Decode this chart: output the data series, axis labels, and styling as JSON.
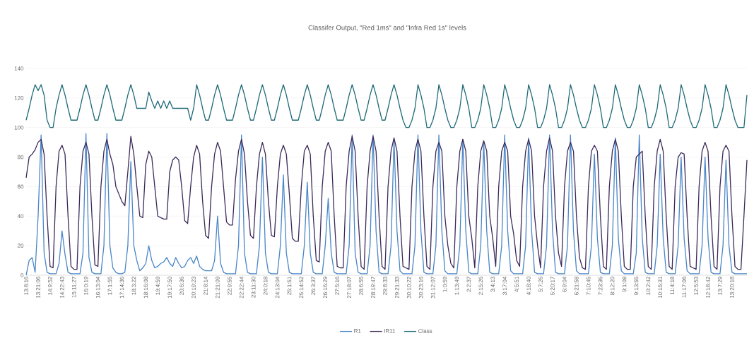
{
  "chart_data": {
    "type": "line",
    "title": "Classifer Output, \"Red 1ms\" and \"Infra Red 1s\" levels",
    "categories": [
      "13:8:16",
      null,
      null,
      null,
      "13:21:06",
      null,
      null,
      null,
      "14:9:52",
      null,
      null,
      null,
      "14:22:43",
      null,
      null,
      null,
      "15:11:27",
      null,
      null,
      null,
      "16:0:19",
      null,
      null,
      null,
      "16:13:04",
      null,
      null,
      null,
      "17:1:55",
      null,
      null,
      null,
      "17:14:36",
      null,
      null,
      null,
      "18:3:22",
      null,
      null,
      null,
      "18:16:08",
      null,
      null,
      null,
      "19:4:59",
      null,
      null,
      null,
      "19:17:50",
      null,
      null,
      null,
      "20:6:36",
      null,
      null,
      null,
      "20:19:23",
      null,
      null,
      null,
      "21:8:14",
      null,
      null,
      null,
      "21:21:09",
      null,
      null,
      null,
      "22:9:55",
      null,
      null,
      null,
      "22:22:44",
      null,
      null,
      null,
      "23:11:30",
      null,
      null,
      null,
      "24:0:18",
      null,
      null,
      null,
      "24:13:04",
      null,
      null,
      null,
      "25:1:51",
      null,
      null,
      null,
      "25:14:52",
      null,
      null,
      null,
      "26:3:37",
      null,
      null,
      null,
      "26:16:29",
      null,
      null,
      null,
      "27:5:16",
      null,
      null,
      null,
      "27:18:07",
      null,
      null,
      null,
      "28:6:55",
      null,
      null,
      null,
      "28:19:47",
      null,
      null,
      null,
      "29:8:33",
      null,
      null,
      null,
      "29:21:33",
      null,
      null,
      null,
      "30:10:22",
      null,
      null,
      null,
      "30:23:16",
      null,
      null,
      null,
      "31:12:07",
      null,
      null,
      null,
      "1:0:59",
      null,
      null,
      null,
      "1:13:49",
      null,
      null,
      null,
      "2:2:37",
      null,
      null,
      null,
      "2:15:26",
      null,
      null,
      null,
      "3:4:13",
      null,
      null,
      null,
      "3:17:04",
      null,
      null,
      null,
      "4:5:51",
      null,
      null,
      null,
      "4:18:40",
      null,
      null,
      null,
      "5:7:26",
      null,
      null,
      null,
      "5:20:17",
      null,
      null,
      null,
      "6:9:04",
      null,
      null,
      null,
      "6:21:58",
      null,
      null,
      null,
      "7:10:45",
      null,
      null,
      null,
      "7:23:36",
      null,
      null,
      null,
      "8:12:20",
      null,
      null,
      null,
      "9:1:08",
      null,
      null,
      null,
      "9:13:55",
      null,
      null,
      null,
      "10:2:42",
      null,
      null,
      null,
      "10:15:31",
      null,
      null,
      null,
      "11:4:18",
      null,
      null,
      null,
      "11:17:06",
      null,
      null,
      null,
      "12:5:53",
      null,
      null,
      null,
      "12:18:42",
      null,
      null,
      null,
      "13:7:29",
      null,
      null,
      null,
      "13:20:18",
      null,
      null,
      null,
      null,
      null
    ],
    "series": [
      {
        "name": "R1",
        "color": "#4a86c8",
        "values": [
          0,
          10,
          12,
          2,
          40,
          95,
          15,
          2,
          1,
          1,
          1,
          8,
          30,
          14,
          2,
          1,
          1,
          1,
          1,
          15,
          96,
          12,
          2,
          1,
          1,
          1,
          20,
          96,
          20,
          5,
          2,
          1,
          1,
          2,
          20,
          77,
          20,
          10,
          3,
          5,
          8,
          20,
          10,
          5,
          6,
          8,
          9,
          12,
          8,
          6,
          12,
          8,
          5,
          6,
          10,
          12,
          8,
          13,
          6,
          4,
          3,
          3,
          3,
          10,
          40,
          8,
          2,
          1,
          1,
          1,
          1,
          20,
          95,
          15,
          2,
          1,
          1,
          1,
          20,
          80,
          15,
          2,
          1,
          1,
          1,
          20,
          68,
          15,
          2,
          1,
          1,
          1,
          1,
          20,
          63,
          15,
          2,
          1,
          1,
          1,
          20,
          52,
          15,
          2,
          1,
          1,
          1,
          1,
          20,
          95,
          15,
          2,
          1,
          1,
          1,
          20,
          95,
          30,
          2,
          1,
          1,
          1,
          20,
          92,
          30,
          3,
          1,
          1,
          1,
          1,
          20,
          95,
          30,
          2,
          1,
          1,
          1,
          20,
          95,
          30,
          3,
          1,
          1,
          1,
          1,
          20,
          92,
          30,
          2,
          1,
          1,
          1,
          20,
          90,
          30,
          2,
          1,
          1,
          1,
          20,
          95,
          30,
          3,
          1,
          1,
          1,
          1,
          20,
          93,
          30,
          2,
          1,
          1,
          1,
          20,
          95,
          30,
          2,
          1,
          1,
          1,
          20,
          95,
          30,
          3,
          1,
          1,
          1,
          1,
          20,
          82,
          25,
          2,
          1,
          1,
          1,
          20,
          93,
          25,
          3,
          1,
          1,
          1,
          1,
          15,
          95,
          25,
          2,
          1,
          1,
          1,
          20,
          82,
          25,
          2,
          1,
          1,
          1,
          20,
          80,
          25,
          3,
          1,
          1,
          1,
          1,
          20,
          80,
          25,
          2,
          1,
          1,
          1,
          20,
          78,
          20,
          2,
          1,
          1,
          1,
          1,
          1
        ]
      },
      {
        "name": "IR11",
        "color": "#3b2a5a",
        "values": [
          66,
          80,
          82,
          85,
          90,
          92,
          82,
          40,
          6,
          5,
          60,
          84,
          88,
          82,
          40,
          6,
          4,
          4,
          60,
          84,
          90,
          82,
          40,
          7,
          6,
          60,
          84,
          92,
          82,
          75,
          60,
          55,
          50,
          47,
          70,
          94,
          82,
          60,
          40,
          39,
          75,
          84,
          80,
          60,
          40,
          39,
          38,
          38,
          70,
          78,
          80,
          78,
          60,
          37,
          35,
          60,
          80,
          88,
          82,
          50,
          27,
          25,
          60,
          82,
          90,
          84,
          60,
          36,
          34,
          34,
          65,
          84,
          92,
          82,
          50,
          27,
          25,
          60,
          82,
          90,
          82,
          50,
          27,
          26,
          60,
          82,
          88,
          82,
          55,
          25,
          23,
          23,
          60,
          84,
          88,
          82,
          40,
          10,
          9,
          60,
          84,
          90,
          84,
          40,
          6,
          5,
          5,
          60,
          84,
          94,
          84,
          40,
          6,
          4,
          60,
          84,
          94,
          84,
          40,
          6,
          4,
          60,
          84,
          93,
          84,
          40,
          6,
          5,
          4,
          60,
          84,
          92,
          84,
          40,
          6,
          4,
          60,
          84,
          90,
          84,
          40,
          20,
          8,
          5,
          60,
          84,
          92,
          84,
          40,
          25,
          5,
          60,
          84,
          91,
          84,
          40,
          25,
          6,
          60,
          84,
          90,
          84,
          40,
          28,
          10,
          6,
          60,
          84,
          92,
          84,
          40,
          20,
          5,
          60,
          84,
          93,
          84,
          40,
          15,
          6,
          60,
          84,
          90,
          84,
          40,
          12,
          5,
          4,
          60,
          84,
          88,
          84,
          40,
          6,
          4,
          60,
          84,
          92,
          84,
          40,
          6,
          4,
          4,
          60,
          80,
          82,
          84,
          40,
          6,
          4,
          60,
          84,
          92,
          84,
          40,
          6,
          4,
          60,
          80,
          83,
          82,
          40,
          6,
          5,
          4,
          60,
          84,
          90,
          84,
          40,
          6,
          4,
          60,
          84,
          88,
          84,
          40,
          6,
          4,
          4,
          40,
          78
        ]
      },
      {
        "name": "Class",
        "color": "#1f6b78",
        "values": [
          105,
          113,
          122,
          129,
          125,
          129,
          122,
          105,
          100,
          100,
          113,
          122,
          129,
          122,
          113,
          105,
          105,
          105,
          113,
          122,
          129,
          122,
          113,
          105,
          105,
          113,
          122,
          129,
          122,
          113,
          105,
          105,
          105,
          113,
          122,
          129,
          122,
          113,
          113,
          113,
          113,
          124,
          118,
          113,
          118,
          113,
          118,
          113,
          118,
          113,
          113,
          113,
          113,
          113,
          113,
          105,
          113,
          129,
          122,
          113,
          105,
          105,
          113,
          122,
          129,
          122,
          113,
          105,
          105,
          105,
          113,
          122,
          129,
          122,
          113,
          105,
          105,
          113,
          122,
          129,
          122,
          113,
          105,
          105,
          113,
          122,
          129,
          122,
          113,
          105,
          105,
          105,
          113,
          122,
          129,
          122,
          113,
          105,
          105,
          113,
          122,
          129,
          122,
          113,
          105,
          105,
          105,
          113,
          122,
          129,
          122,
          113,
          105,
          105,
          113,
          122,
          129,
          122,
          113,
          105,
          105,
          113,
          122,
          129,
          122,
          113,
          105,
          100,
          100,
          105,
          113,
          129,
          122,
          113,
          100,
          100,
          105,
          113,
          129,
          122,
          113,
          105,
          100,
          100,
          105,
          113,
          129,
          122,
          113,
          100,
          100,
          105,
          113,
          129,
          122,
          113,
          100,
          100,
          105,
          113,
          129,
          122,
          113,
          105,
          100,
          100,
          105,
          113,
          129,
          122,
          113,
          100,
          100,
          105,
          113,
          129,
          122,
          113,
          100,
          100,
          105,
          113,
          129,
          122,
          113,
          105,
          100,
          100,
          105,
          113,
          129,
          122,
          113,
          100,
          100,
          105,
          113,
          129,
          122,
          113,
          105,
          100,
          100,
          105,
          113,
          129,
          122,
          113,
          100,
          100,
          105,
          113,
          129,
          122,
          113,
          100,
          100,
          105,
          113,
          129,
          122,
          113,
          105,
          100,
          100,
          105,
          113,
          129,
          122,
          113,
          100,
          100,
          105,
          113,
          129,
          122,
          113,
          105,
          100,
          100,
          100,
          122
        ]
      }
    ],
    "ylim": [
      0,
      140
    ],
    "yticks": [
      0,
      20,
      40,
      60,
      80,
      100,
      120,
      140
    ],
    "grid": "y",
    "legend": "bottom",
    "marker": "none",
    "line_style": "solid"
  }
}
